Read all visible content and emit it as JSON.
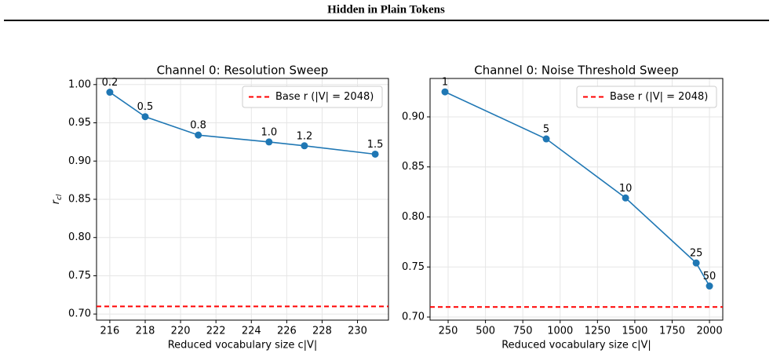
{
  "header": {
    "title": "Hidden in Plain Tokens"
  },
  "chart_data": [
    {
      "type": "line",
      "title": "Channel 0: Resolution Sweep",
      "xlabel": "Reduced vocabulary size c|V|",
      "ylabel": "r",
      "ylabel_sub": "cl",
      "x": [
        216,
        218,
        221,
        225,
        227,
        231
      ],
      "series": [
        {
          "color": "#1f77b4",
          "values": [
            0.99,
            0.958,
            0.934,
            0.925,
            0.92,
            0.909
          ]
        }
      ],
      "point_labels": [
        "0.2",
        "0.5",
        "0.8",
        "1.0",
        "1.2",
        "1.5"
      ],
      "hline": {
        "value": 0.71,
        "color": "#ff0000",
        "legend": "Base r (|V| = 2048)"
      },
      "legend_position": "upper right",
      "grid": true,
      "xlim": [
        215.25,
        231.75
      ],
      "xticks": [
        216,
        218,
        220,
        222,
        224,
        226,
        228,
        230
      ],
      "ylim": [
        0.692,
        1.008
      ],
      "yticks": [
        {
          "value": 0.7,
          "label": "0.70"
        },
        0.75,
        {
          "value": 0.8,
          "label": "0.80"
        },
        0.85,
        {
          "value": 0.9,
          "label": "0.90"
        },
        0.95,
        {
          "value": 1.0,
          "label": "1.00"
        }
      ]
    },
    {
      "type": "line",
      "title": "Channel 0: Noise Threshold Sweep",
      "xlabel": "Reduced vocabulary size c|V|",
      "x": [
        229,
        907,
        1438,
        1911,
        2000
      ],
      "series": [
        {
          "color": "#1f77b4",
          "values": [
            0.925,
            0.878,
            0.819,
            0.754,
            0.731
          ]
        }
      ],
      "point_labels": [
        "1",
        "5",
        "10",
        "25",
        "50"
      ],
      "hline": {
        "value": 0.71,
        "color": "#ff0000",
        "legend": "Base r (|V| = 2048)"
      },
      "legend_position": "upper right",
      "grid": true,
      "xlim": [
        129,
        2089
      ],
      "xticks": [
        250,
        500,
        750,
        1000,
        1250,
        1500,
        1750,
        2000
      ],
      "ylim": [
        0.6969,
        0.9384
      ],
      "yticks": [
        {
          "value": 0.7,
          "label": "0.70"
        },
        0.75,
        {
          "value": 0.8,
          "label": "0.80"
        },
        0.85,
        {
          "value": 0.9,
          "label": "0.90"
        }
      ]
    }
  ]
}
